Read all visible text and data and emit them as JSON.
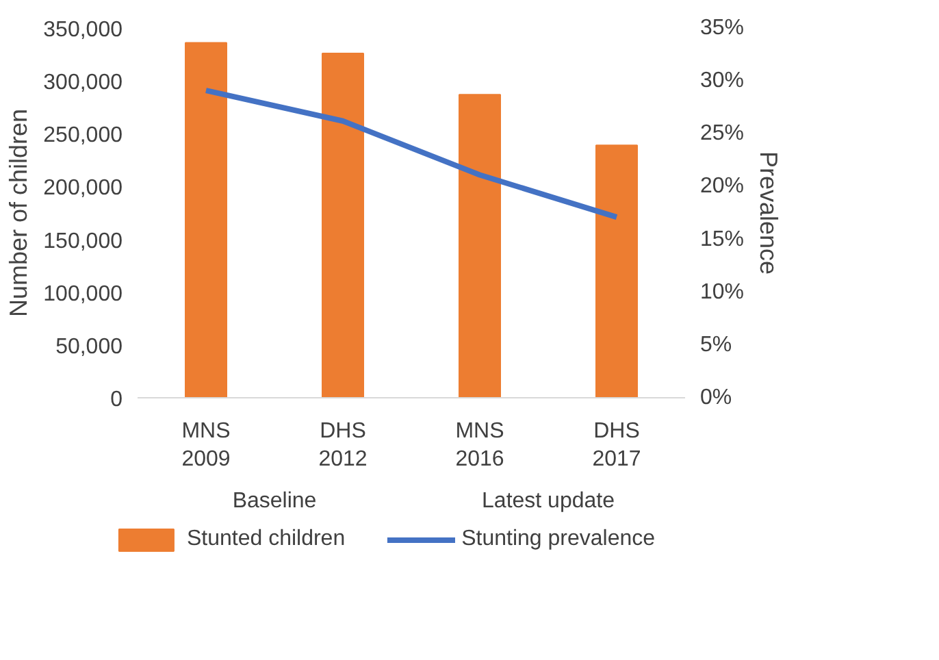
{
  "chart_data": {
    "type": "bar",
    "categories": [
      "MNS 2009",
      "DHS 2012",
      "MNS 2016",
      "DHS 2017"
    ],
    "ylabel": "Number of children",
    "y2label": "Prevalence",
    "ylim": [
      0,
      350000
    ],
    "yticks": [
      0,
      {
        "value": 50000,
        "label": "50,000"
      },
      {
        "value": 100000,
        "label": "100,000"
      },
      {
        "value": 150000,
        "label": "150,000"
      },
      {
        "value": 200000,
        "label": "200,000"
      },
      {
        "value": 250000,
        "label": "250,000"
      },
      {
        "value": 300000,
        "label": "300,000"
      },
      {
        "value": 350000,
        "label": "350,000"
      }
    ],
    "y2lim": [
      0,
      35
    ],
    "y2ticks": [
      {
        "value": 0,
        "label": "0%"
      },
      {
        "value": 5,
        "label": "5%"
      },
      {
        "value": 10,
        "label": "10%"
      },
      {
        "value": 15,
        "label": "15%"
      },
      {
        "value": 20,
        "label": "20%"
      },
      {
        "value": 25,
        "label": "25%"
      },
      {
        "value": 30,
        "label": "30%"
      },
      {
        "value": 35,
        "label": "35%"
      }
    ],
    "series": [
      {
        "name": "Stunted children",
        "color": "#ed7d31",
        "values": [
          336000,
          326000,
          287000,
          239000
        ]
      },
      {
        "name": "Stunting prevalence",
        "type": "line",
        "axis": "y2",
        "color": "#4472c4",
        "values": [
          29.1,
          26.2,
          21.1,
          17.1
        ]
      }
    ],
    "annotations": [
      "Baseline",
      "Latest update"
    ],
    "grid": false,
    "legend": "bottom",
    "marker": "none"
  }
}
